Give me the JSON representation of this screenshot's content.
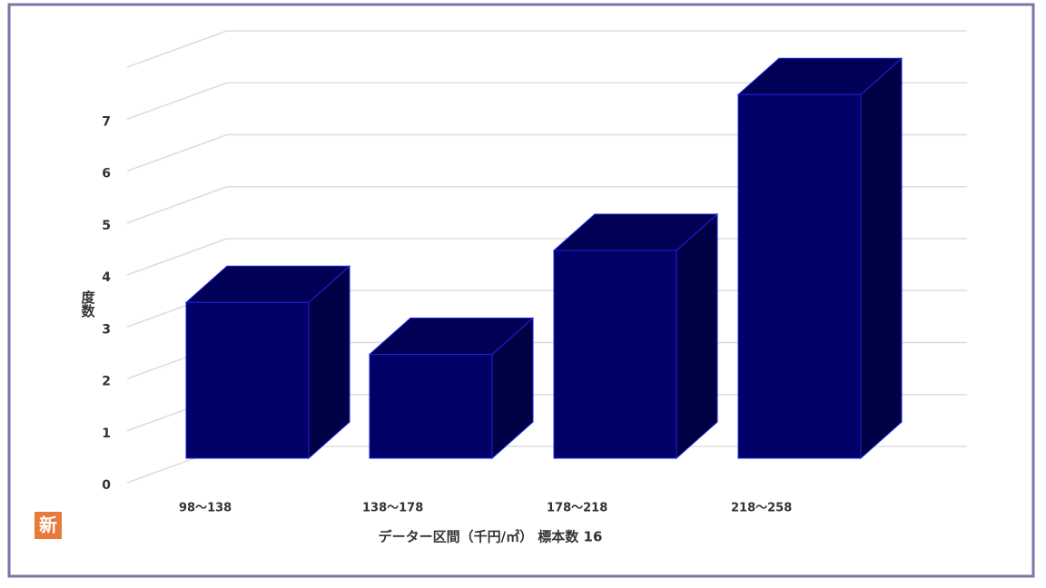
{
  "chart_data": {
    "type": "bar3d",
    "categories": [
      "98～138",
      "138～178",
      "178～218",
      "218～258"
    ],
    "values": [
      3,
      2,
      4,
      7
    ],
    "color": "#000066",
    "ylim": [
      0,
      8
    ],
    "yticks": [
      0,
      1,
      2,
      3,
      4,
      5,
      6,
      7
    ],
    "grid": true,
    "y_label": "度数",
    "x_label": "データー区間（千円/㎡） 標本数 16"
  },
  "badge": "新"
}
